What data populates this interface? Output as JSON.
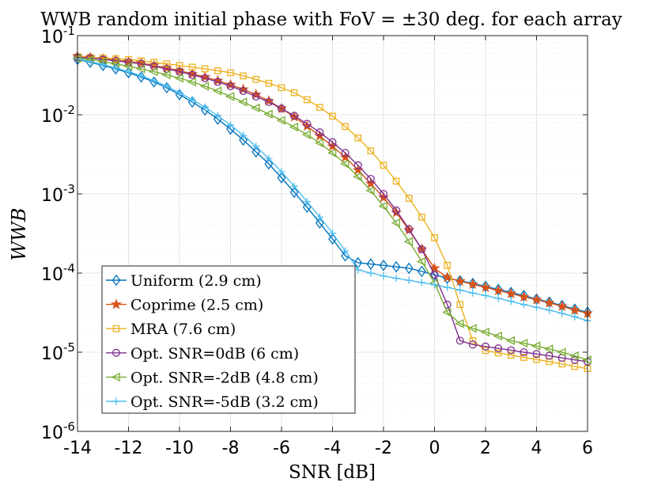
{
  "chart_data": {
    "type": "line",
    "title": "WWB random initial phase with FoV = ±30 deg. for each array",
    "xlabel": "SNR [dB]",
    "ylabel": "WWB",
    "xlim": [
      -14,
      6
    ],
    "ylim": [
      1e-06,
      0.1
    ],
    "yscale": "log",
    "grid": true,
    "legend_position": "bottom-left",
    "x_ticks": [
      -14,
      -12,
      -10,
      -8,
      -6,
      -4,
      -2,
      0,
      2,
      4,
      6
    ],
    "x_tick_labels": [
      "-14",
      "-12",
      "-10",
      "-8",
      "-6",
      "-4",
      "-2",
      "0",
      "2",
      "4",
      "6"
    ],
    "y_ticks": [
      {
        "value": 1e-06,
        "base": "10",
        "exp": "-6"
      },
      {
        "value": 1e-05,
        "base": "10",
        "exp": "-5"
      },
      {
        "value": 0.0001,
        "base": "10",
        "exp": "-4"
      },
      {
        "value": 0.001,
        "base": "10",
        "exp": "-3"
      },
      {
        "value": 0.01,
        "base": "10",
        "exp": "-2"
      },
      {
        "value": 0.1,
        "base": "10",
        "exp": "-1"
      }
    ],
    "x": [
      -14,
      -13.5,
      -13,
      -12.5,
      -12,
      -11.5,
      -11,
      -10.5,
      -10,
      -9.5,
      -9,
      -8.5,
      -8,
      -7.5,
      -7,
      -6.5,
      -6,
      -5.5,
      -5,
      -4.5,
      -4,
      -3.5,
      -3,
      -2.5,
      -2,
      -1.5,
      -1,
      -0.5,
      0,
      0.5,
      1,
      1.5,
      2,
      2.5,
      3,
      3.5,
      4,
      4.5,
      5,
      5.5,
      6
    ],
    "series": [
      {
        "name": "Uniform (2.9 cm)",
        "color": "#0072BD",
        "marker": "diamond",
        "values": [
          0.05,
          0.046,
          0.042,
          0.038,
          0.034,
          0.03,
          0.026,
          0.022,
          0.018,
          0.0145,
          0.0115,
          0.0088,
          0.0066,
          0.0048,
          0.0034,
          0.0024,
          0.0016,
          0.00105,
          0.00068,
          0.00043,
          0.00027,
          0.000165,
          0.000135,
          0.00013,
          0.000125,
          0.00012,
          0.000115,
          0.000105,
          9.5e-05,
          8.6e-05,
          8e-05,
          7.4e-05,
          6.8e-05,
          6.2e-05,
          5.7e-05,
          5.2e-05,
          4.7e-05,
          4.3e-05,
          3.9e-05,
          3.5e-05,
          3.2e-05
        ]
      },
      {
        "name": "Coprime (2.5 cm)",
        "color": "#D95319",
        "marker": "star",
        "values": [
          0.055,
          0.053,
          0.051,
          0.049,
          0.047,
          0.045,
          0.042,
          0.039,
          0.036,
          0.033,
          0.03,
          0.027,
          0.024,
          0.021,
          0.018,
          0.015,
          0.012,
          0.0094,
          0.0072,
          0.0054,
          0.004,
          0.0029,
          0.002,
          0.00135,
          0.0009,
          0.00058,
          0.00035,
          0.0002,
          0.000115,
          8.8e-05,
          7.9e-05,
          7.2e-05,
          6.6e-05,
          6e-05,
          5.5e-05,
          5e-05,
          4.6e-05,
          4.2e-05,
          3.8e-05,
          3.4e-05,
          3.1e-05
        ]
      },
      {
        "name": "MRA (7.6 cm)",
        "color": "#EDB120",
        "marker": "square",
        "values": [
          0.054,
          0.053,
          0.052,
          0.051,
          0.05,
          0.048,
          0.046,
          0.044,
          0.042,
          0.04,
          0.038,
          0.036,
          0.034,
          0.031,
          0.028,
          0.025,
          0.022,
          0.019,
          0.0155,
          0.0124,
          0.0096,
          0.0071,
          0.0051,
          0.0035,
          0.0023,
          0.00145,
          0.00088,
          0.00051,
          0.00028,
          0.000125,
          4e-05,
          1.4e-05,
          1.05e-05,
          9.8e-06,
          9.2e-06,
          8.6e-06,
          8.1e-06,
          7.6e-06,
          7.1e-06,
          6.6e-06,
          6.2e-06
        ]
      },
      {
        "name": "Opt. SNR=0dB (6 cm)",
        "color": "#7E2F8E",
        "marker": "circle",
        "values": [
          0.053,
          0.052,
          0.05,
          0.048,
          0.046,
          0.044,
          0.041,
          0.038,
          0.035,
          0.032,
          0.029,
          0.026,
          0.023,
          0.02,
          0.017,
          0.0145,
          0.012,
          0.0097,
          0.0077,
          0.006,
          0.0045,
          0.0033,
          0.0023,
          0.00155,
          0.001,
          0.00062,
          0.00036,
          0.0002,
          9.5e-05,
          4e-05,
          1.4e-05,
          1.25e-05,
          1.18e-05,
          1.12e-05,
          1.06e-05,
          1e-05,
          9.5e-06,
          9e-06,
          8.5e-06,
          8e-06,
          7.6e-06
        ]
      },
      {
        "name": "Opt. SNR=-2dB (4.8 cm)",
        "color": "#77AC30",
        "marker": "triangle-left",
        "values": [
          0.052,
          0.05,
          0.047,
          0.044,
          0.041,
          0.038,
          0.035,
          0.032,
          0.029,
          0.026,
          0.023,
          0.02,
          0.017,
          0.0145,
          0.0122,
          0.0102,
          0.0085,
          0.007,
          0.0056,
          0.0044,
          0.0033,
          0.0024,
          0.00165,
          0.0011,
          0.0007,
          0.00043,
          0.00025,
          0.00014,
          7.5e-05,
          3.2e-05,
          2.3e-05,
          2e-05,
          1.8e-05,
          1.6e-05,
          1.4e-05,
          1.3e-05,
          1.2e-05,
          1.1e-05,
          1e-05,
          9e-06,
          8e-06
        ]
      },
      {
        "name": "Opt. SNR=-5dB (3.2 cm)",
        "color": "#4DBEEE",
        "marker": "plus",
        "values": [
          0.051,
          0.047,
          0.043,
          0.039,
          0.035,
          0.031,
          0.027,
          0.023,
          0.019,
          0.0155,
          0.0125,
          0.0097,
          0.0074,
          0.0055,
          0.004,
          0.0028,
          0.0019,
          0.00125,
          0.0008,
          0.00051,
          0.00032,
          0.00019,
          0.00011,
          0.0001,
          9.2e-05,
          8.6e-05,
          8.1e-05,
          7.6e-05,
          7.1e-05,
          6.6e-05,
          6.1e-05,
          5.6e-05,
          5.2e-05,
          4.8e-05,
          4.4e-05,
          4e-05,
          3.7e-05,
          3.4e-05,
          3.1e-05,
          2.8e-05,
          2.5e-05
        ]
      }
    ]
  }
}
